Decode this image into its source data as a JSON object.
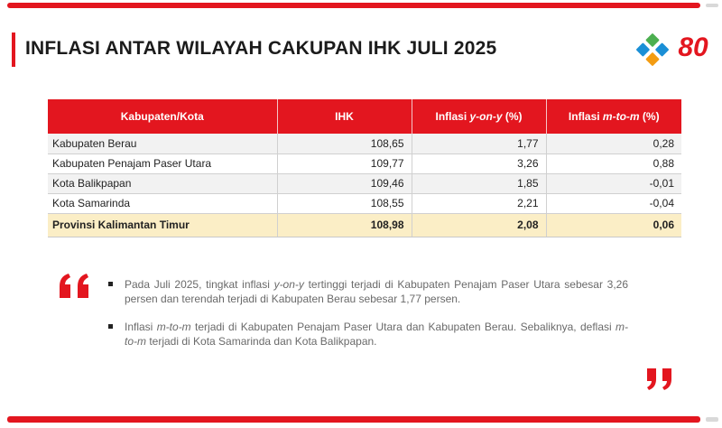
{
  "title": "INFLASI ANTAR WILAYAH CAKUPAN IHK JULI 2025",
  "logos": {
    "bps": "bps-logo",
    "anniversary_text": "80"
  },
  "table": {
    "headers": {
      "region": "Kabupaten/Kota",
      "ihk": "IHK",
      "yoy_prefix": "Inflasi ",
      "yoy_term": "y-on-y",
      "yoy_suffix": " (%)",
      "mtm_prefix": "Inflasi ",
      "mtm_term": "m-to-m",
      "mtm_suffix": " (%)"
    },
    "rows": [
      {
        "region": "Kabupaten Berau",
        "ihk": "108,65",
        "yoy": "1,77",
        "mtm": "0,28"
      },
      {
        "region": "Kabupaten Penajam Paser Utara",
        "ihk": "109,77",
        "yoy": "3,26",
        "mtm": "0,88"
      },
      {
        "region": "Kota Balikpapan",
        "ihk": "109,46",
        "yoy": "1,85",
        "mtm": "-0,01"
      },
      {
        "region": "Kota Samarinda",
        "ihk": "108,55",
        "yoy": "2,21",
        "mtm": "-0,04"
      }
    ],
    "total": {
      "region": "Provinsi Kalimantan Timur",
      "ihk": "108,98",
      "yoy": "2,08",
      "mtm": "0,06"
    }
  },
  "notes": {
    "b1_a": "Pada Juli 2025, tingkat inflasi ",
    "b1_term": "y-on-y",
    "b1_b": " tertinggi terjadi di Kabupaten Penajam Paser Utara sebesar 3,26 persen dan terendah terjadi di Kabupaten Berau sebesar 1,77 persen.",
    "b2_a": "Inflasi ",
    "b2_term1": "m-to-m",
    "b2_b": " terjadi di Kabupaten Penajam Paser Utara dan Kabupaten Berau. Sebaliknya, deflasi ",
    "b2_term2": "m-to-m",
    "b2_c": " terjadi di Kota Samarinda dan Kota Balikpapan."
  },
  "colors": {
    "accent": "#e3161f",
    "total_row": "#fbeec6",
    "stripe": "#f2f2f2"
  }
}
